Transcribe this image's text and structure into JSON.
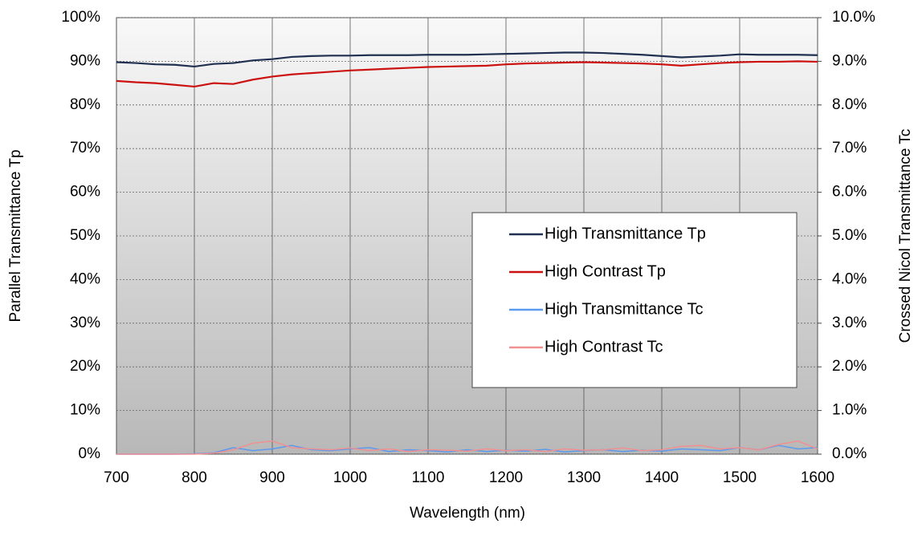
{
  "chart_data": {
    "type": "line",
    "xlabel": "Wavelength (nm)",
    "ylabel": "Parallel Transmittance Tp",
    "y2label": "Crossed Nicol Transmittance Tc",
    "x": [
      700,
      725,
      750,
      775,
      800,
      825,
      850,
      875,
      900,
      925,
      950,
      975,
      1000,
      1025,
      1050,
      1075,
      1100,
      1125,
      1150,
      1175,
      1200,
      1225,
      1250,
      1275,
      1300,
      1325,
      1350,
      1375,
      1400,
      1425,
      1450,
      1475,
      1500,
      1525,
      1550,
      1575,
      1600
    ],
    "xlim": [
      700,
      1600
    ],
    "xticks": [
      700,
      800,
      900,
      1000,
      1100,
      1200,
      1300,
      1400,
      1500,
      1600
    ],
    "ylim": [
      0,
      100
    ],
    "yticks": [
      {
        "value": 0,
        "label": "0%"
      },
      {
        "value": 10,
        "label": "10%"
      },
      {
        "value": 20,
        "label": "20%"
      },
      {
        "value": 30,
        "label": "30%"
      },
      {
        "value": 40,
        "label": "40%"
      },
      {
        "value": 50,
        "label": "50%"
      },
      {
        "value": 60,
        "label": "60%"
      },
      {
        "value": 70,
        "label": "70%"
      },
      {
        "value": 80,
        "label": "80%"
      },
      {
        "value": 90,
        "label": "90%"
      },
      {
        "value": 100,
        "label": "100%"
      }
    ],
    "y2lim": [
      0,
      10
    ],
    "y2ticks": [
      {
        "value": 0,
        "label": "0.0%"
      },
      {
        "value": 1,
        "label": "1.0%"
      },
      {
        "value": 2,
        "label": "2.0%"
      },
      {
        "value": 3,
        "label": "3.0%"
      },
      {
        "value": 4,
        "label": "4.0%"
      },
      {
        "value": 5,
        "label": "5.0%"
      },
      {
        "value": 6,
        "label": "6.0%"
      },
      {
        "value": 7,
        "label": "7.0%"
      },
      {
        "value": 8,
        "label": "8.0%"
      },
      {
        "value": 9,
        "label": "9.0%"
      },
      {
        "value": 10,
        "label": "10.0%"
      }
    ],
    "grid": true,
    "legend_position": "center-right",
    "series": [
      {
        "name": "High Transmittance Tp",
        "color": "#1f3050",
        "values": [
          89.8,
          89.6,
          89.3,
          89.2,
          88.8,
          89.4,
          89.6,
          90.2,
          90.5,
          91.0,
          91.2,
          91.3,
          91.3,
          91.4,
          91.4,
          91.4,
          91.5,
          91.5,
          91.5,
          91.6,
          91.7,
          91.8,
          91.9,
          92.0,
          92.0,
          91.9,
          91.7,
          91.5,
          91.2,
          90.9,
          91.1,
          91.3,
          91.6,
          91.5,
          91.5,
          91.5,
          91.4
        ]
      },
      {
        "name": "High Contrast Tp",
        "color": "#cc1111",
        "values": [
          85.5,
          85.2,
          85.0,
          84.6,
          84.2,
          85.0,
          84.8,
          85.8,
          86.5,
          87.0,
          87.3,
          87.6,
          87.9,
          88.1,
          88.3,
          88.5,
          88.7,
          88.8,
          88.9,
          89.0,
          89.3,
          89.5,
          89.6,
          89.7,
          89.8,
          89.7,
          89.6,
          89.5,
          89.3,
          89.0,
          89.3,
          89.6,
          89.8,
          89.9,
          89.9,
          90.0,
          89.9
        ]
      },
      {
        "name": "High Transmittance Tc",
        "color": "#5b9bef",
        "axis": "y2",
        "values": [
          0.0,
          0.0,
          0.0,
          0.0,
          0.01,
          0.03,
          0.15,
          0.08,
          0.12,
          0.2,
          0.1,
          0.08,
          0.12,
          0.15,
          0.06,
          0.1,
          0.08,
          0.05,
          0.1,
          0.06,
          0.09,
          0.07,
          0.11,
          0.05,
          0.08,
          0.1,
          0.06,
          0.09,
          0.07,
          0.12,
          0.1,
          0.08,
          0.15,
          0.1,
          0.2,
          0.12,
          0.15
        ]
      },
      {
        "name": "High Contrast Tc",
        "color": "#f09090",
        "axis": "y2",
        "values": [
          0.0,
          0.0,
          0.0,
          0.0,
          0.0,
          0.02,
          0.1,
          0.25,
          0.3,
          0.15,
          0.12,
          0.1,
          0.14,
          0.08,
          0.12,
          0.06,
          0.1,
          0.09,
          0.07,
          0.12,
          0.08,
          0.1,
          0.06,
          0.12,
          0.09,
          0.1,
          0.14,
          0.08,
          0.1,
          0.18,
          0.2,
          0.12,
          0.15,
          0.1,
          0.22,
          0.3,
          0.12
        ]
      }
    ]
  }
}
